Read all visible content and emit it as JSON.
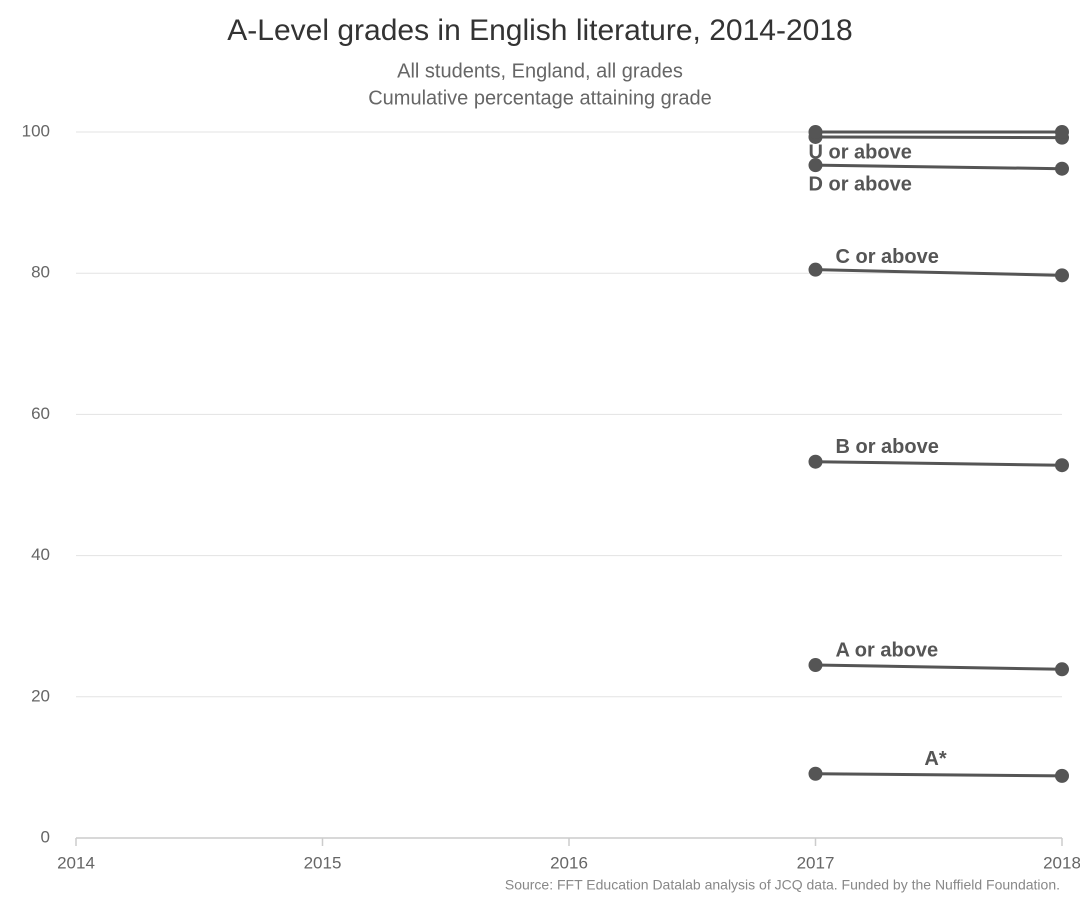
{
  "chart_data": {
    "type": "line",
    "title": "A-Level grades in English literature, 2014-2018",
    "subtitle": [
      "All students, England, all grades",
      "Cumulative percentage attaining grade"
    ],
    "source": "Source: FFT Education Datalab analysis of JCQ data. Funded by the Nuffield Foundation.",
    "x": [
      2017,
      2018
    ],
    "xlim": [
      2014,
      2018
    ],
    "xticks": [
      2014,
      2015,
      2016,
      2017,
      2018
    ],
    "ylim": [
      0,
      100
    ],
    "yticks": [
      0,
      20,
      40,
      60,
      80,
      100
    ],
    "grid": true,
    "color": "#555555",
    "series": [
      {
        "name": "A*",
        "values": [
          9.1,
          8.8
        ]
      },
      {
        "name": "A or above",
        "values": [
          24.5,
          23.9
        ]
      },
      {
        "name": "B or above",
        "values": [
          53.3,
          52.8
        ]
      },
      {
        "name": "C or above",
        "values": [
          80.5,
          79.7
        ]
      },
      {
        "name": "D or above",
        "values": [
          95.3,
          94.8
        ]
      },
      {
        "values": [
          99.3,
          99.2
        ]
      },
      {
        "name": "U or above",
        "values": [
          100,
          100
        ]
      }
    ]
  }
}
